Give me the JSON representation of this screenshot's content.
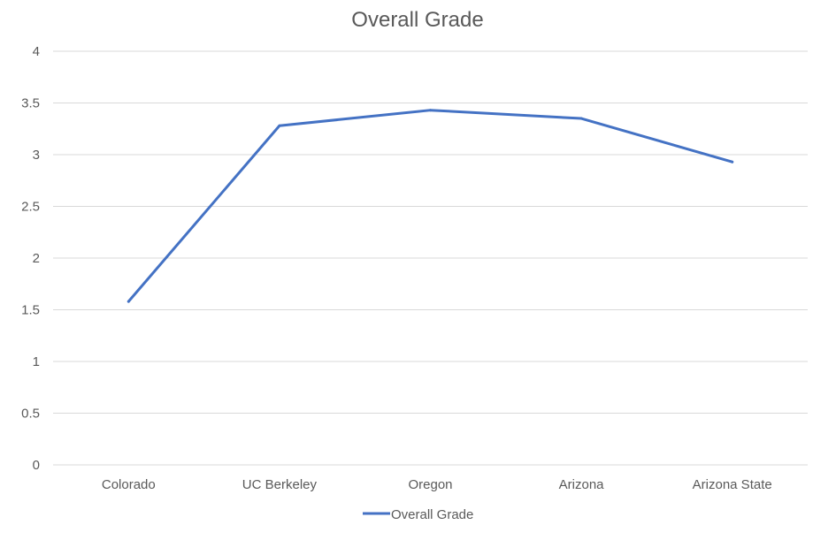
{
  "chart_data": {
    "type": "line",
    "title": "Overall Grade",
    "categories": [
      "Colorado",
      "UC Berkeley",
      "Oregon",
      "Arizona",
      "Arizona State"
    ],
    "series": [
      {
        "name": "Overall Grade",
        "values": [
          1.58,
          3.28,
          3.43,
          3.35,
          2.93
        ]
      }
    ],
    "ylim": [
      0,
      4
    ],
    "yticks": [
      "0",
      "0.5",
      "1",
      "1.5",
      "2",
      "2.5",
      "3",
      "3.5",
      "4"
    ],
    "grid": true,
    "legend_position": "bottom",
    "colors": {
      "series": "#4472c4",
      "grid": "#d9d9d9",
      "text": "#595959"
    }
  }
}
